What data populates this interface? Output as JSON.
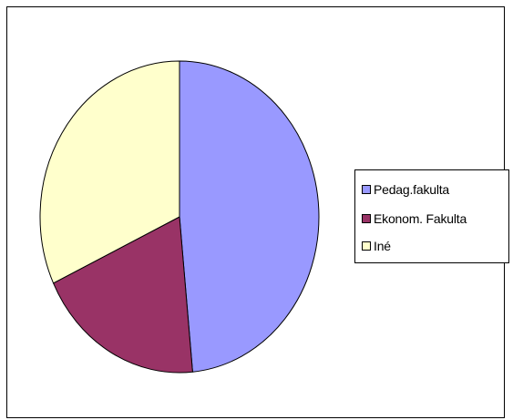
{
  "chart_data": {
    "type": "pie",
    "title": "",
    "start_angle_deg": 0,
    "direction": "clockwise",
    "series": [
      {
        "values": [
          48.5,
          19.5,
          32.0
        ],
        "categories": [
          "Pedag.fakulta",
          "Ekonom. Fakulta",
          "Iné"
        ],
        "colors": [
          "#9999ff",
          "#993366",
          "#ffffcc"
        ]
      }
    ],
    "legend": {
      "position": "right",
      "entries": [
        "Pedag.fakulta",
        "Ekonom. Fakulta",
        "Iné"
      ]
    },
    "slice_border_color": "#000000"
  }
}
